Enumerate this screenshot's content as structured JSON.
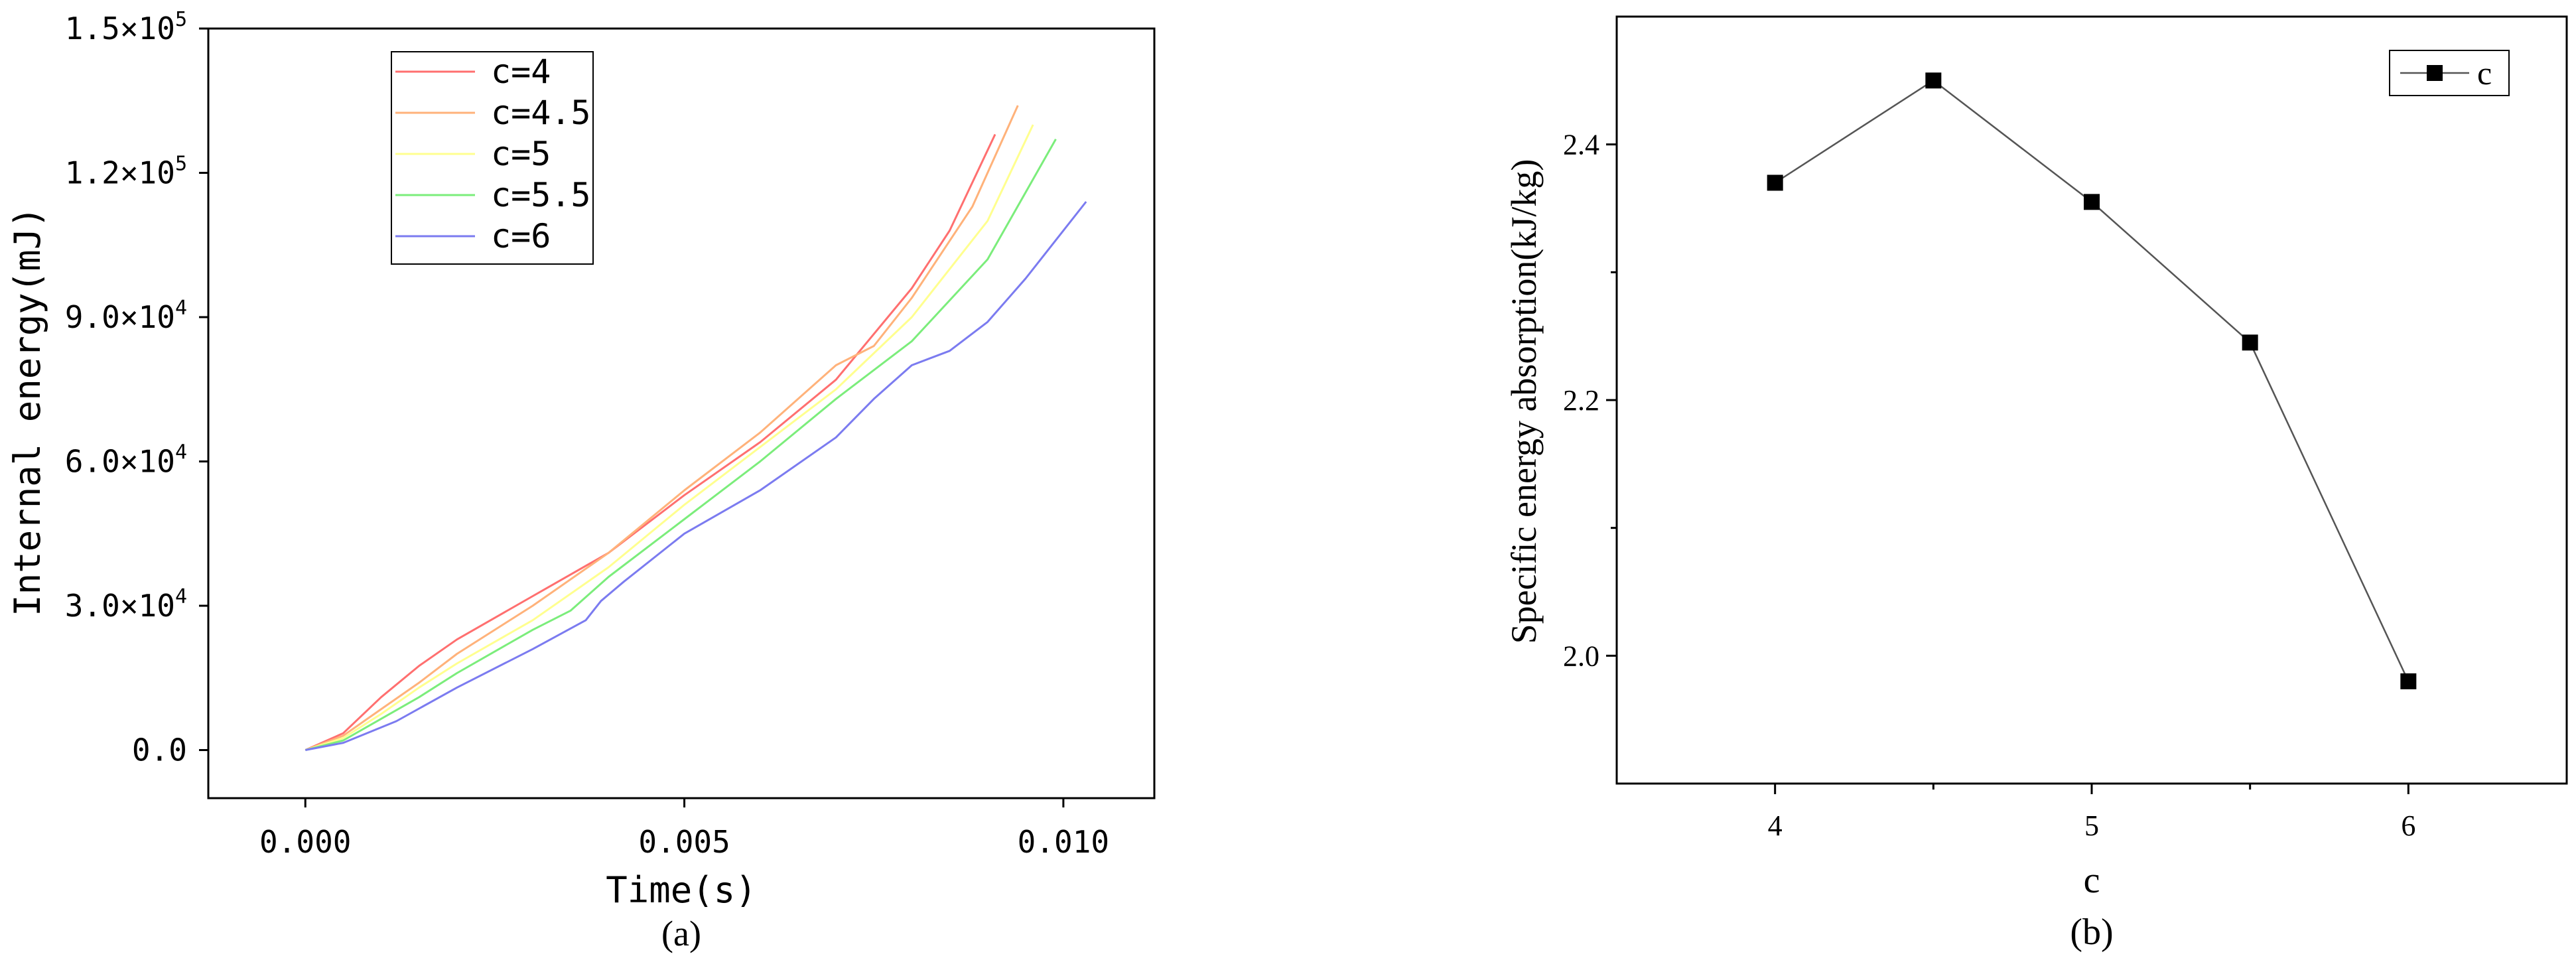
{
  "chart_data": [
    {
      "type": "line",
      "panel_label": "(a)",
      "xlabel": "Time(s)",
      "ylabel": "Internal energy(mJ)",
      "xlim": [
        -0.00128,
        0.0112
      ],
      "ylim": [
        -10000,
        150000
      ],
      "x_ticks": [
        0.0,
        0.005,
        0.01
      ],
      "x_tick_labels": [
        "0.000",
        "0.005",
        "0.010"
      ],
      "y_ticks": [
        0,
        30000,
        60000,
        90000,
        120000,
        150000
      ],
      "y_tick_labels": [
        {
          "mantissa": "0.0",
          "exp": ""
        },
        {
          "mantissa": "3.0×10",
          "exp": "4"
        },
        {
          "mantissa": "6.0×10",
          "exp": "4"
        },
        {
          "mantissa": "9.0×10",
          "exp": "4"
        },
        {
          "mantissa": "1.2×10",
          "exp": "5"
        },
        {
          "mantissa": "1.5×10",
          "exp": "5"
        }
      ],
      "legend_position": "top-left",
      "series": [
        {
          "name": "c=4",
          "color": "#ff6f6f",
          "points": [
            [
              0,
              0
            ],
            [
              0.0005,
              3500
            ],
            [
              0.001,
              11000
            ],
            [
              0.0015,
              17500
            ],
            [
              0.002,
              23000
            ],
            [
              0.003,
              32000
            ],
            [
              0.004,
              41000
            ],
            [
              0.005,
              53000
            ],
            [
              0.006,
              64000
            ],
            [
              0.007,
              77000
            ],
            [
              0.008,
              96000
            ],
            [
              0.0085,
              108000
            ],
            [
              0.0091,
              128000
            ]
          ]
        },
        {
          "name": "c=4.5",
          "color": "#ffb27a",
          "points": [
            [
              0,
              0
            ],
            [
              0.0005,
              3000
            ],
            [
              0.001,
              8500
            ],
            [
              0.0015,
              14000
            ],
            [
              0.002,
              20000
            ],
            [
              0.003,
              30000
            ],
            [
              0.004,
              41000
            ],
            [
              0.005,
              54000
            ],
            [
              0.006,
              66000
            ],
            [
              0.007,
              80000
            ],
            [
              0.0075,
              84000
            ],
            [
              0.008,
              94000
            ],
            [
              0.0088,
              113000
            ],
            [
              0.0094,
              134000
            ]
          ]
        },
        {
          "name": "c=5",
          "color": "#ffff8f",
          "points": [
            [
              0,
              0
            ],
            [
              0.0005,
              2500
            ],
            [
              0.001,
              7500
            ],
            [
              0.0015,
              13000
            ],
            [
              0.002,
              18000
            ],
            [
              0.003,
              27000
            ],
            [
              0.004,
              38000
            ],
            [
              0.005,
              51000
            ],
            [
              0.006,
              63000
            ],
            [
              0.007,
              75000
            ],
            [
              0.008,
              90000
            ],
            [
              0.009,
              110000
            ],
            [
              0.0096,
              130000
            ]
          ]
        },
        {
          "name": "c=5.5",
          "color": "#7bed7b",
          "points": [
            [
              0,
              0
            ],
            [
              0.0005,
              2000
            ],
            [
              0.001,
              6500
            ],
            [
              0.0015,
              11000
            ],
            [
              0.002,
              16000
            ],
            [
              0.003,
              25000
            ],
            [
              0.0035,
              29000
            ],
            [
              0.004,
              36000
            ],
            [
              0.005,
              48000
            ],
            [
              0.006,
              60000
            ],
            [
              0.007,
              73000
            ],
            [
              0.008,
              85000
            ],
            [
              0.009,
              102000
            ],
            [
              0.0099,
              127000
            ]
          ]
        },
        {
          "name": "c=6",
          "color": "#7b7bf0",
          "points": [
            [
              0,
              0
            ],
            [
              0.0005,
              1500
            ],
            [
              0.0012,
              6000
            ],
            [
              0.002,
              13000
            ],
            [
              0.003,
              21000
            ],
            [
              0.0037,
              27000
            ],
            [
              0.0039,
              31000
            ],
            [
              0.0042,
              35000
            ],
            [
              0.005,
              45000
            ],
            [
              0.006,
              54000
            ],
            [
              0.007,
              65000
            ],
            [
              0.0075,
              73000
            ],
            [
              0.008,
              80000
            ],
            [
              0.0085,
              83000
            ],
            [
              0.009,
              89000
            ],
            [
              0.0095,
              98000
            ],
            [
              0.0103,
              114000
            ]
          ]
        }
      ]
    },
    {
      "type": "line",
      "panel_label": "(b)",
      "xlabel": "c",
      "ylabel": "Specific energy absorption(kJ/kg)",
      "xlim": [
        3.5,
        6.5
      ],
      "ylim": [
        1.9,
        2.5
      ],
      "x_ticks": [
        4,
        4.5,
        5,
        5.5,
        6
      ],
      "x_tick_labels": [
        "4",
        "",
        "5",
        "",
        "6"
      ],
      "y_ticks": [
        2.0,
        2.1,
        2.2,
        2.3,
        2.4
      ],
      "y_tick_labels": [
        "2.0",
        "",
        "2.2",
        "",
        "2.4"
      ],
      "legend_position": "top-right",
      "series": [
        {
          "name": "c",
          "color": "#000000",
          "marker": "square",
          "points": [
            [
              4,
              2.37
            ],
            [
              4.5,
              2.45
            ],
            [
              5,
              2.355
            ],
            [
              5.5,
              2.245
            ],
            [
              6,
              1.98
            ]
          ]
        }
      ]
    }
  ]
}
